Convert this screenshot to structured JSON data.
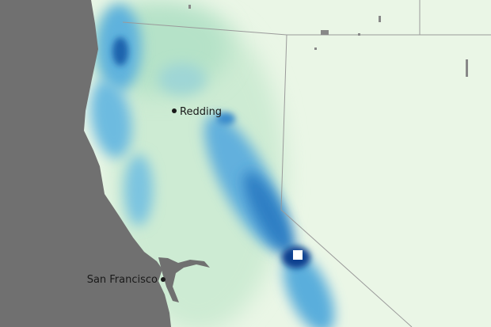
{
  "map": {
    "colors": {
      "ocean": "#707070",
      "land_low": "#e8f5e2",
      "land_mid": "#b9e3c4",
      "precip_mid": "#4aa6d8",
      "precip_high": "#1559a8",
      "precip_max": "#ffffff",
      "border": "#9a9a9a"
    },
    "cities": [
      {
        "name": "Redding"
      },
      {
        "name": "San Francisco"
      }
    ]
  }
}
